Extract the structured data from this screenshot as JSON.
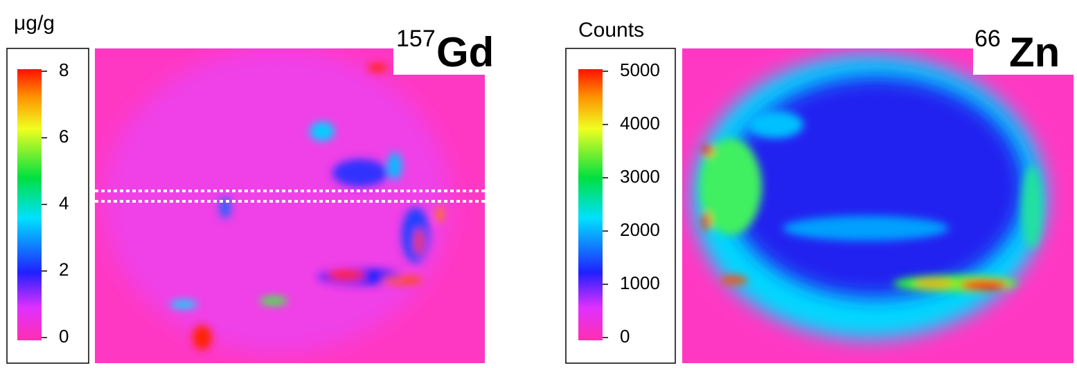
{
  "chart_data": [
    {
      "type": "heatmap",
      "isotope_mass": "157",
      "element": "Gd",
      "colorbar_label": "μg/g",
      "clim": [
        0,
        8
      ],
      "cticks": [
        0,
        2,
        4,
        6,
        8
      ]
    },
    {
      "type": "heatmap",
      "isotope_mass": "66",
      "element": "Zn",
      "colorbar_label": "Counts",
      "clim": [
        0,
        5000
      ],
      "cticks": [
        0,
        1000,
        2000,
        3000,
        4000,
        5000
      ]
    }
  ]
}
